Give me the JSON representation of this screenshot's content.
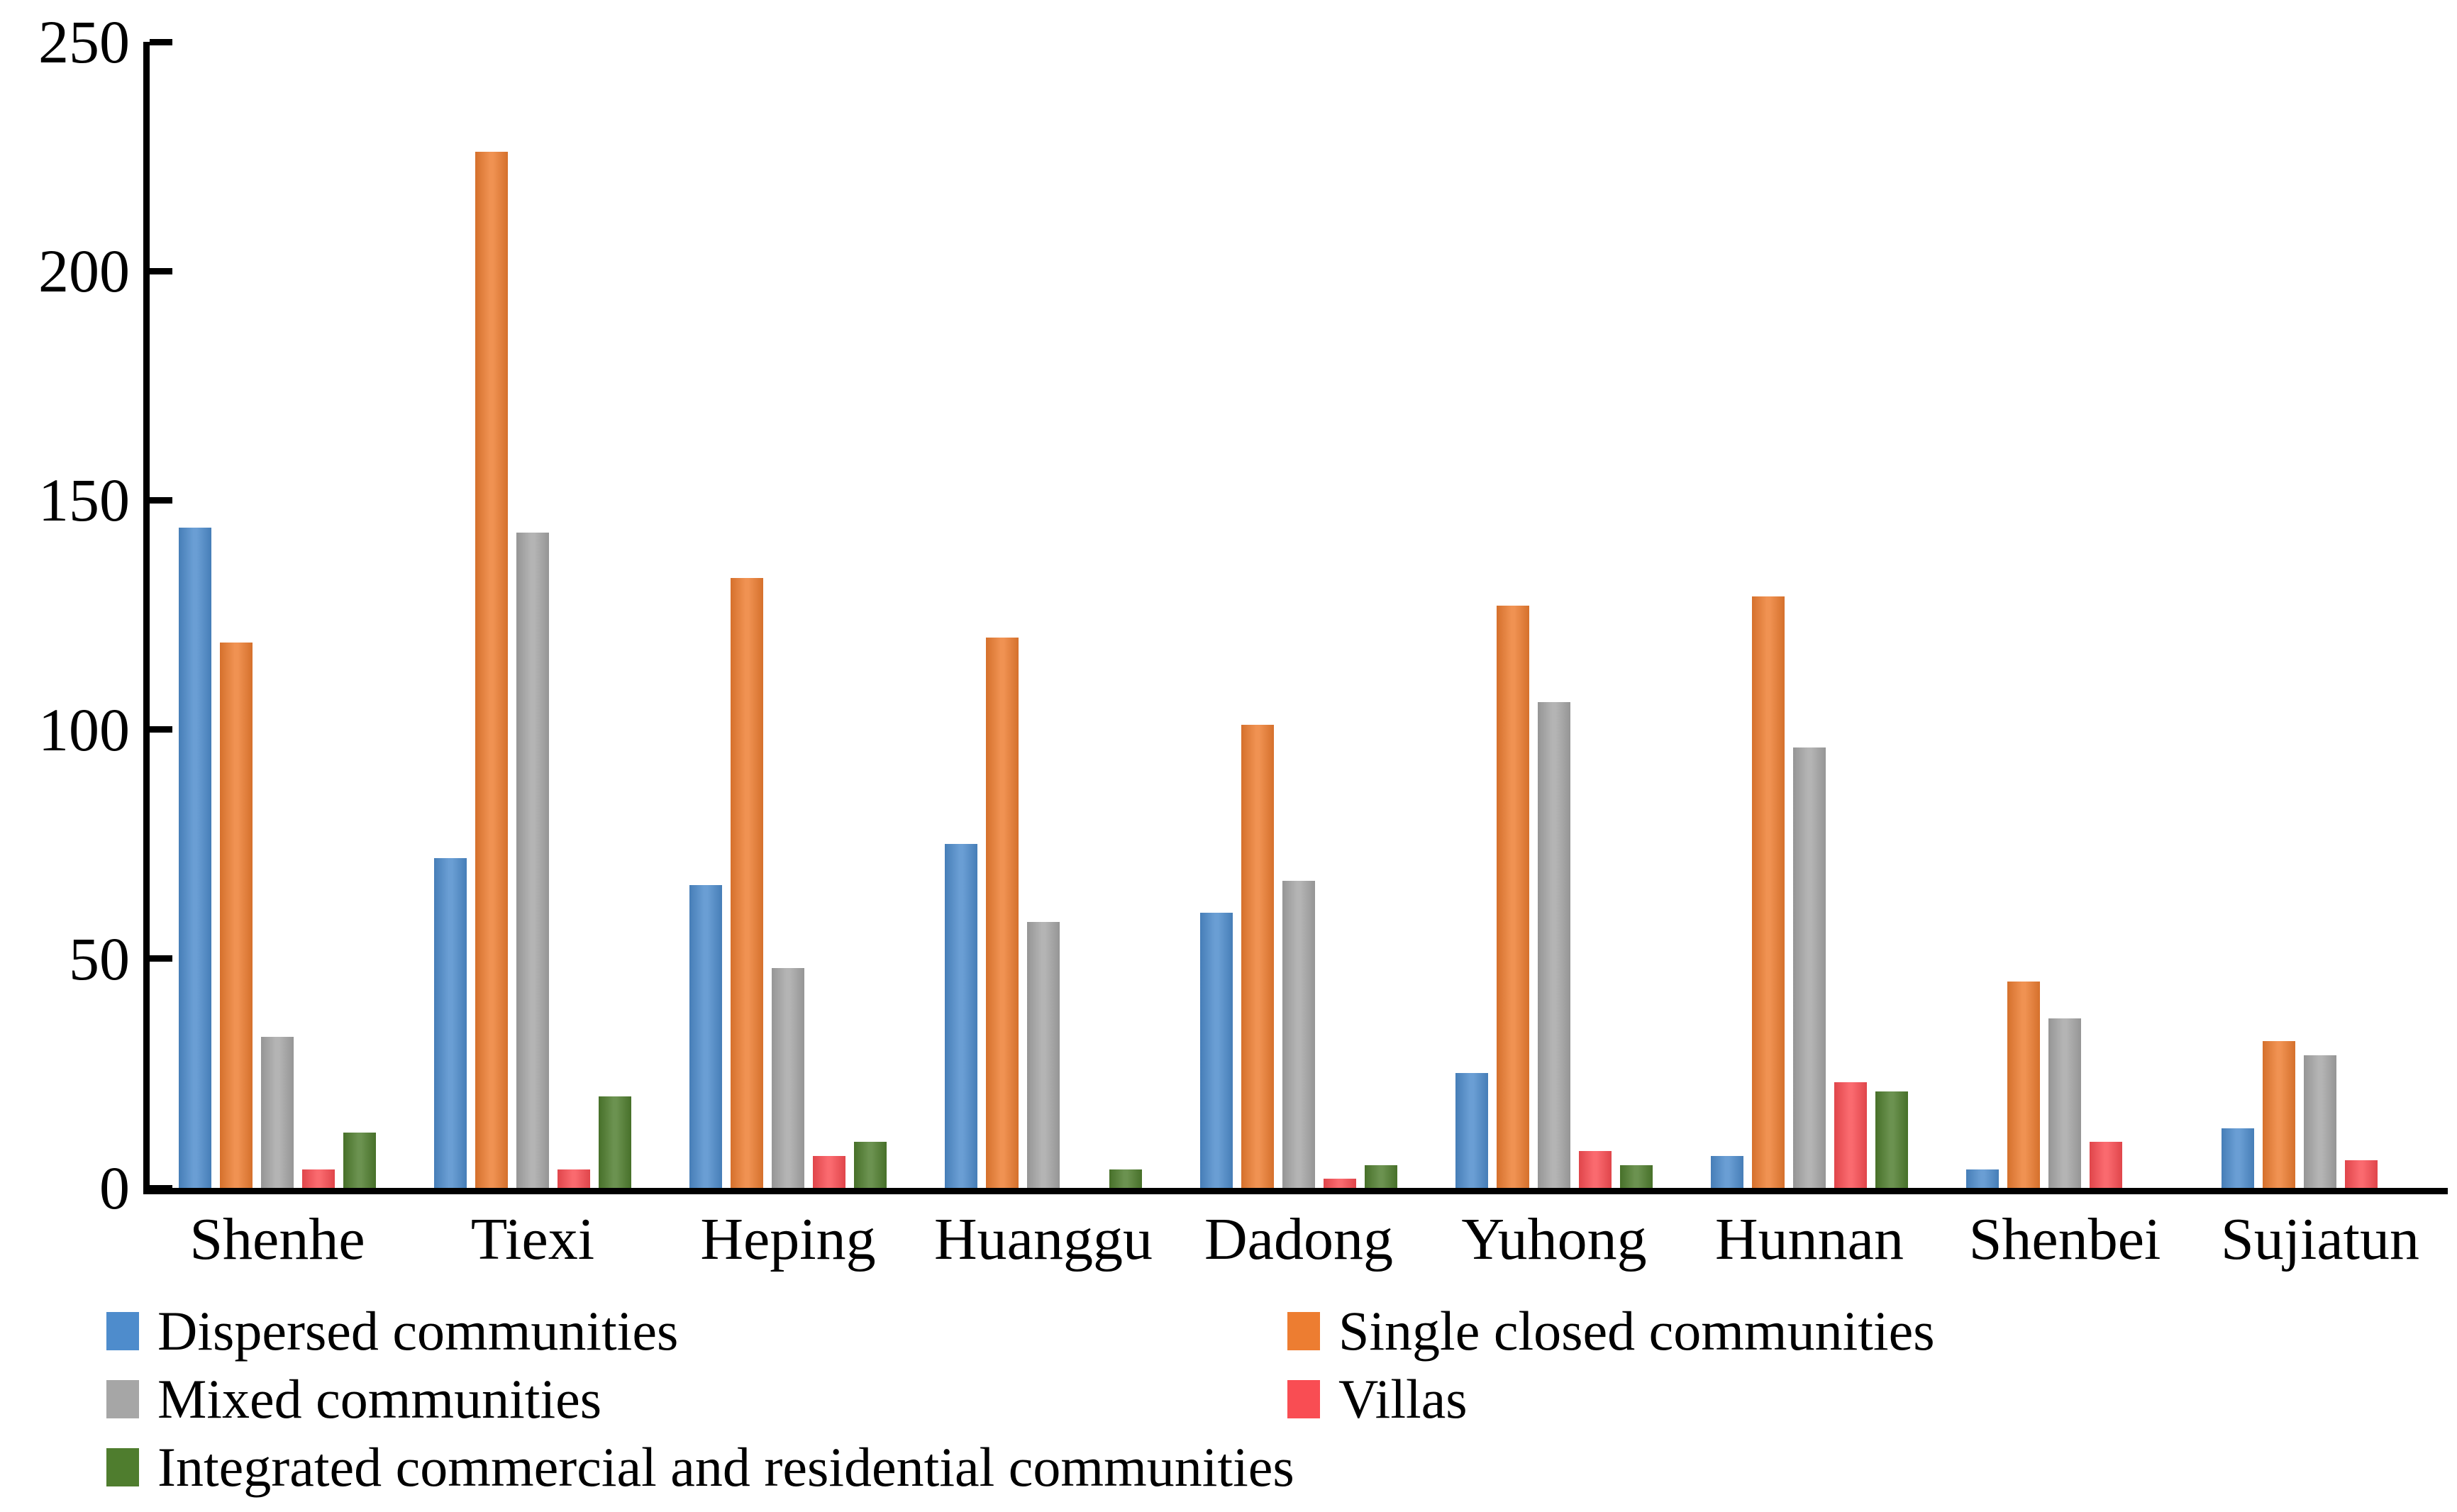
{
  "chart_data": {
    "type": "bar",
    "title": "",
    "xlabel": "",
    "ylabel": "",
    "categories": [
      "Shenhe",
      "Tiexi",
      "Heping",
      "Huanggu",
      "Dadong",
      "Yuhong",
      "Hunnan",
      "Shenbei",
      "Sujiatun"
    ],
    "series": [
      {
        "name": "Dispersed communities",
        "color": "#4E8CCC",
        "values": [
          144,
          72,
          66,
          75,
          60,
          25,
          7,
          4,
          13
        ]
      },
      {
        "name": "Single closed communities",
        "color": "#ED7D31",
        "values": [
          119,
          226,
          133,
          120,
          101,
          127,
          129,
          45,
          32
        ]
      },
      {
        "name": "Mixed communities",
        "color": "#A6A6A6",
        "values": [
          33,
          143,
          48,
          58,
          67,
          106,
          96,
          37,
          29
        ]
      },
      {
        "name": "Villas",
        "color": "#F94D53",
        "values": [
          4,
          4,
          7,
          0,
          2,
          8,
          23,
          10,
          6
        ]
      },
      {
        "name": "Integrated commercial and residential communities",
        "color": "#4F7D2E",
        "values": [
          12,
          20,
          10,
          4,
          5,
          5,
          21,
          0,
          0
        ]
      }
    ],
    "ylim": [
      0,
      250
    ],
    "yticks": [
      0,
      50,
      100,
      150,
      200,
      250
    ],
    "grid": false,
    "tick_direction": "inside",
    "axis_color": "#000000",
    "background_color": "#FFFFFF",
    "legend_position": "bottom",
    "legend_columns": 2
  }
}
